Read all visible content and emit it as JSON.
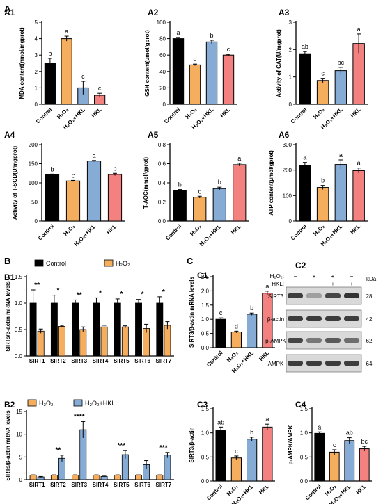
{
  "colors": {
    "Control": "#000000",
    "H2O2": "#f5ad5e",
    "H2O2+HKL": "#86acd6",
    "HKL": "#f28180"
  },
  "chart_data": [
    {
      "id": "A1",
      "label": "A1",
      "type": "bar",
      "ylabel": "MDA content(nmol/mgprot)",
      "ylim": [
        0,
        5
      ],
      "yticks": [
        0,
        1,
        2,
        3,
        4,
        5
      ],
      "categories": [
        "Control",
        "H₂O₂",
        "H₂O₂+HKL",
        "HKL"
      ],
      "values": [
        2.5,
        4.0,
        1.0,
        0.55
      ],
      "errors": [
        0.3,
        0.15,
        0.4,
        0.12
      ],
      "letters": [
        "b",
        "a",
        "c",
        "c"
      ]
    },
    {
      "id": "A2",
      "label": "A2",
      "type": "bar",
      "ylabel": "GSH content(μmol/gprot)",
      "ylim": [
        0,
        100
      ],
      "yticks": [
        0,
        20,
        40,
        60,
        80,
        100
      ],
      "categories": [
        "Control",
        "H₂O₂",
        "H₂O₂+HKL",
        "HKL"
      ],
      "values": [
        80,
        48,
        76,
        60
      ],
      "errors": [
        1.5,
        1,
        2,
        1
      ],
      "letters": [
        "a",
        "d",
        "b",
        "c"
      ]
    },
    {
      "id": "A3",
      "label": "A3",
      "type": "bar",
      "ylabel": "Activity of CAT(U/mgprot)",
      "ylim": [
        0,
        3
      ],
      "yticks": [
        0,
        1,
        2,
        3
      ],
      "categories": [
        "Control",
        "H₂O₂",
        "H₂O₂+HKL",
        "HKL"
      ],
      "values": [
        1.85,
        0.87,
        1.23,
        2.22
      ],
      "errors": [
        0.08,
        0.08,
        0.12,
        0.35
      ],
      "letters": [
        "ab",
        "c",
        "bc",
        "a"
      ]
    },
    {
      "id": "A4",
      "label": "A4",
      "type": "bar",
      "ylabel": "Activity of T-SOD(U/mgprot)",
      "ylim": [
        0,
        200
      ],
      "yticks": [
        0,
        50,
        100,
        150,
        200
      ],
      "categories": [
        "Control",
        "H₂O₂",
        "H₂O₂+HKL",
        "HKL"
      ],
      "values": [
        121,
        105,
        157,
        122
      ],
      "errors": [
        2,
        1.5,
        1.5,
        3
      ],
      "letters": [
        "b",
        "c",
        "a",
        "b"
      ]
    },
    {
      "id": "A5",
      "label": "A5",
      "type": "bar",
      "ylabel": "T-AOC(mmol/gprot)",
      "ylim": [
        0,
        0.8
      ],
      "yticks": [
        0.0,
        0.2,
        0.4,
        0.6,
        0.8
      ],
      "categories": [
        "Control",
        "H₂O₂",
        "H₂O₂+HKL",
        "HKL"
      ],
      "values": [
        0.32,
        0.25,
        0.34,
        0.59
      ],
      "errors": [
        0.01,
        0.01,
        0.015,
        0.015
      ],
      "letters": [
        "b",
        "c",
        "b",
        "a"
      ]
    },
    {
      "id": "A6",
      "label": "A6",
      "type": "bar",
      "ylabel": "ATP content(μmol/gprot)",
      "ylim": [
        0,
        300
      ],
      "yticks": [
        0,
        100,
        200,
        300
      ],
      "categories": [
        "Control",
        "H₂O₂",
        "H₂O₂+HKL",
        "HKL"
      ],
      "values": [
        218,
        132,
        222,
        198
      ],
      "errors": [
        12,
        8,
        18,
        10
      ],
      "letters": [
        "a",
        "b",
        "a",
        "a"
      ]
    },
    {
      "id": "B1",
      "label": "B1",
      "type": "grouped-bar",
      "ylabel": "SIRTs/β-actin mRNA levels",
      "ylim": [
        0,
        1.5
      ],
      "yticks": [
        0.0,
        0.5,
        1.0,
        1.5
      ],
      "categories": [
        "SIRT1",
        "SIRT2",
        "SIRT3",
        "SIRT4",
        "SIRT5",
        "SIRT6",
        "SIRT7"
      ],
      "series": [
        {
          "name": "Control",
          "values": [
            1.0,
            1.0,
            1.0,
            1.0,
            1.0,
            1.0,
            1.0
          ],
          "errors": [
            0.25,
            0.15,
            0.06,
            0.1,
            0.08,
            0.07,
            0.12
          ]
        },
        {
          "name": "H₂O₂",
          "values": [
            0.47,
            0.56,
            0.5,
            0.55,
            0.55,
            0.52,
            0.58
          ],
          "errors": [
            0.04,
            0.02,
            0.05,
            0.03,
            0.02,
            0.08,
            0.07
          ]
        }
      ],
      "annotations": [
        "**",
        "*",
        "**",
        "*",
        "*",
        "*",
        "*"
      ]
    },
    {
      "id": "B2",
      "label": "B2",
      "type": "grouped-bar",
      "ylabel": "SIRTs/β-actin mRNA levels",
      "ylim": [
        0,
        15
      ],
      "yticks": [
        0,
        5,
        10,
        15
      ],
      "categories": [
        "SIRT1",
        "SIRT2",
        "SIRT3",
        "SIRT4",
        "SIRT5",
        "SIRT6",
        "SIRT7"
      ],
      "series": [
        {
          "name": "H₂O₂",
          "values": [
            1.0,
            1.0,
            1.0,
            1.0,
            1.0,
            1.0,
            1.0
          ],
          "errors": [
            0.05,
            0.05,
            0.05,
            0.05,
            0.05,
            0.05,
            0.05
          ]
        },
        {
          "name": "H₂O₂+HKL",
          "values": [
            0.6,
            4.7,
            11.0,
            0.7,
            5.5,
            3.3,
            5.4
          ],
          "errors": [
            0.1,
            0.7,
            1.8,
            0.2,
            0.9,
            0.9,
            0.6
          ]
        }
      ],
      "annotations": [
        "",
        "**",
        "****",
        "",
        "***",
        "",
        "***"
      ]
    },
    {
      "id": "C1",
      "label": "C1",
      "type": "bar",
      "ylabel": "SIRT3/β-actin mRNA levels",
      "ylim": [
        0,
        2.5
      ],
      "yticks": [
        0.0,
        0.5,
        1.0,
        1.5,
        2.0,
        2.5
      ],
      "categories": [
        "Control",
        "H₂O₂",
        "H₂O₂+HKL",
        "HKL"
      ],
      "values": [
        1.0,
        0.55,
        1.18,
        1.92
      ],
      "errors": [
        0.05,
        0.03,
        0.04,
        0.07
      ],
      "letters": [
        "c",
        "d",
        "b",
        "a"
      ]
    },
    {
      "id": "C3",
      "label": "C3",
      "type": "bar",
      "ylabel": "SIRT3/β-actin",
      "ylim": [
        0,
        1.5
      ],
      "yticks": [
        0.0,
        0.5,
        1.0,
        1.5
      ],
      "categories": [
        "Control",
        "H₂O₂",
        "H₂O₂+HKL",
        "HKL"
      ],
      "values": [
        1.05,
        0.48,
        0.87,
        1.12
      ],
      "errors": [
        0.07,
        0.04,
        0.04,
        0.06
      ],
      "letters": [
        "ab",
        "c",
        "b",
        "a"
      ]
    },
    {
      "id": "C4",
      "label": "C4",
      "type": "bar",
      "ylabel": "p-AMPK/AMPK",
      "ylim": [
        0,
        1.5
      ],
      "yticks": [
        0.0,
        0.5,
        1.0,
        1.5
      ],
      "categories": [
        "Control",
        "H₂O₂",
        "H₂O₂+HKL",
        "HKL"
      ],
      "values": [
        0.99,
        0.6,
        0.84,
        0.67
      ],
      "errors": [
        0.03,
        0.05,
        0.06,
        0.05
      ],
      "letters": [
        "a",
        "c",
        "ab",
        "bc"
      ]
    }
  ],
  "sections": {
    "A": "A",
    "B": "B",
    "C": "C"
  },
  "blot": {
    "label": "C2",
    "header_rows": [
      "H₂O₂:",
      "HKL:"
    ],
    "h2o2_signs": [
      "−",
      "+",
      "+",
      "−"
    ],
    "hkl_signs": [
      "−",
      "−",
      "+",
      "+"
    ],
    "kda": "kDa",
    "bands": [
      {
        "name": "SIRT3",
        "kda": "28",
        "intensity": [
          0.85,
          0.35,
          0.8,
          0.9
        ]
      },
      {
        "name": "β-actin",
        "kda": "42",
        "intensity": [
          0.85,
          0.85,
          0.85,
          0.85
        ]
      },
      {
        "name": "p-AMPK",
        "kda": "62",
        "intensity": [
          0.8,
          0.55,
          0.7,
          0.6
        ]
      },
      {
        "name": "AMPK",
        "kda": "64",
        "intensity": [
          0.85,
          0.85,
          0.85,
          0.85
        ]
      }
    ]
  }
}
